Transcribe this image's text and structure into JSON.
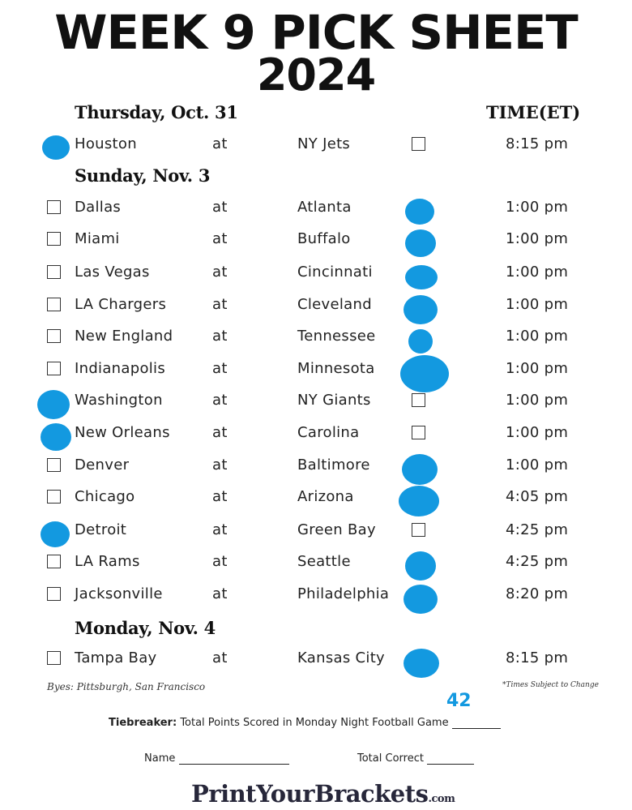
{
  "title_line1": "WEEK 9 PICK SHEET",
  "title_line2": "2024",
  "time_header": "TIME(ET)",
  "at_word": "at",
  "accent_color": "#1399e0",
  "sections": [
    {
      "day": "Thursday, Oct. 31",
      "games": [
        {
          "away": "Houston",
          "home": "NY Jets",
          "time": "8:15 pm",
          "pick": "away"
        }
      ]
    },
    {
      "day": "Sunday, Nov. 3",
      "games": [
        {
          "away": "Dallas",
          "home": "Atlanta",
          "time": "1:00 pm",
          "pick": "home"
        },
        {
          "away": "Miami",
          "home": "Buffalo",
          "time": "1:00 pm",
          "pick": "home"
        },
        {
          "away": "Las Vegas",
          "home": "Cincinnati",
          "time": "1:00 pm",
          "pick": "home"
        },
        {
          "away": "LA Chargers",
          "home": "Cleveland",
          "time": "1:00 pm",
          "pick": "home"
        },
        {
          "away": "New England",
          "home": "Tennessee",
          "time": "1:00 pm",
          "pick": "home"
        },
        {
          "away": "Indianapolis",
          "home": "Minnesota",
          "time": "1:00 pm",
          "pick": "home"
        },
        {
          "away": "Washington",
          "home": "NY Giants",
          "time": "1:00 pm",
          "pick": "away"
        },
        {
          "away": "New Orleans",
          "home": "Carolina",
          "time": "1:00 pm",
          "pick": "away"
        },
        {
          "away": "Denver",
          "home": "Baltimore",
          "time": "1:00 pm",
          "pick": "home"
        },
        {
          "away": "Chicago",
          "home": "Arizona",
          "time": "4:05 pm",
          "pick": "home"
        },
        {
          "away": "Detroit",
          "home": "Green Bay",
          "time": "4:25 pm",
          "pick": "away"
        },
        {
          "away": "LA Rams",
          "home": "Seattle",
          "time": "4:25 pm",
          "pick": "home"
        },
        {
          "away": "Jacksonville",
          "home": "Philadelphia",
          "time": "8:20 pm",
          "pick": "home"
        }
      ]
    },
    {
      "day": "Monday, Nov. 4",
      "games": [
        {
          "away": "Tampa Bay",
          "home": "Kansas City",
          "time": "8:15 pm",
          "pick": "home"
        }
      ]
    }
  ],
  "byes": "Byes: Pittsburgh, San Francisco",
  "times_note": "*Times Subject to Change",
  "tiebreaker_label": "Tiebreaker:",
  "tiebreaker_text": "Total Points Scored in Monday Night Football Game",
  "tiebreaker_value": "42",
  "name_label": "Name",
  "total_correct_label": "Total Correct",
  "logo_main": "PrintYourBrackets",
  "logo_suffix": ".com"
}
